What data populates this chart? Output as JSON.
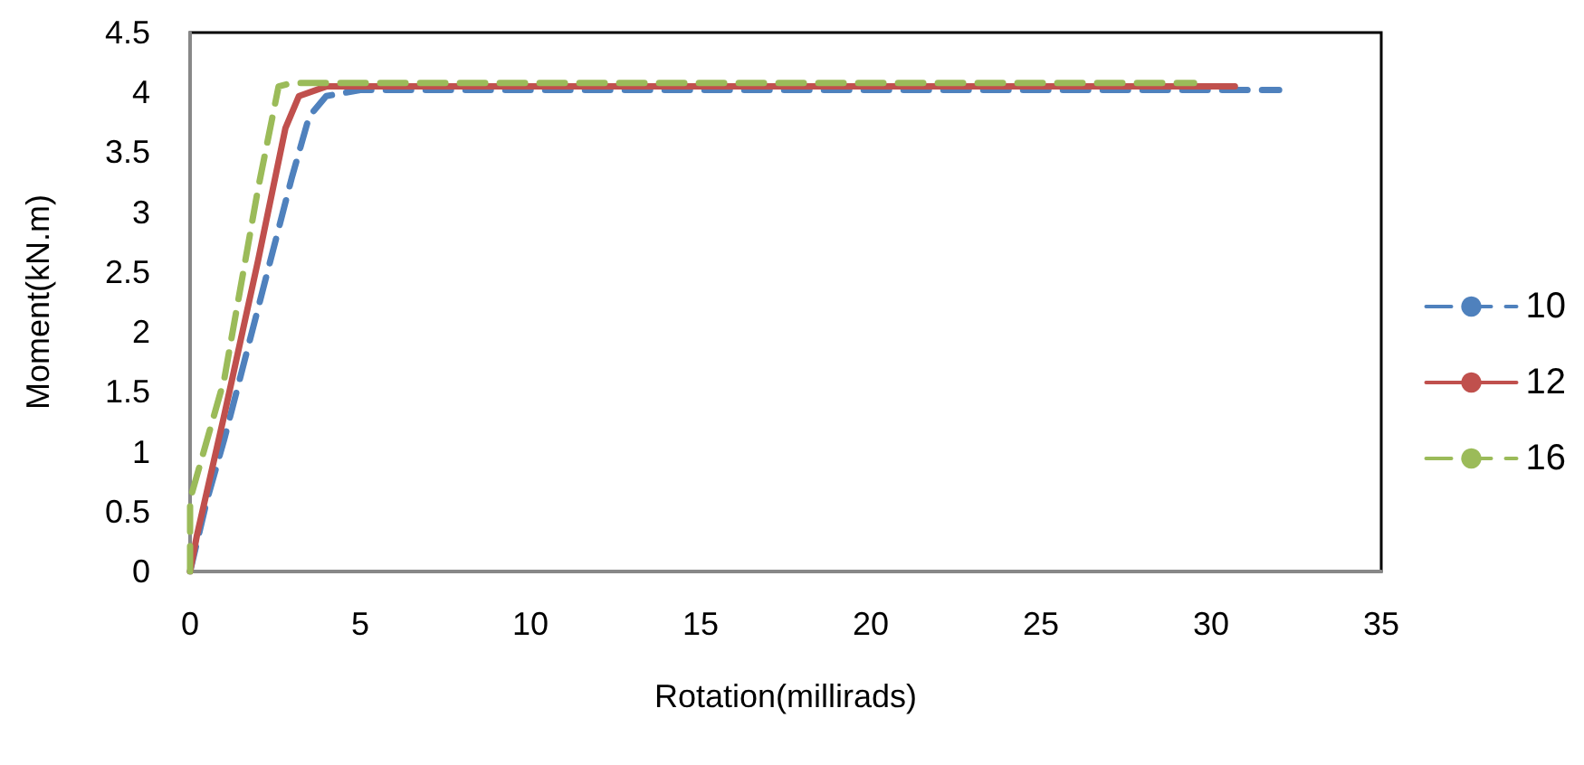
{
  "chart_data": {
    "type": "line",
    "xlabel": "Rotation(millirads)",
    "ylabel": "Moment(kN.m)",
    "xlim": [
      0,
      35
    ],
    "xticks": [
      0,
      5,
      10,
      15,
      20,
      25,
      30,
      35
    ],
    "ylim": [
      0,
      4.5
    ],
    "yticks": [
      0,
      0.5,
      1,
      1.5,
      2,
      2.5,
      3,
      3.5,
      4,
      4.5
    ],
    "grid": false,
    "legend": "right",
    "marker": "none",
    "series": [
      {
        "name": "10",
        "color": "#4f81bd",
        "line_style": "dashed",
        "x": [
          0,
          0.5,
          1,
          2,
          3,
          3.5,
          4,
          5,
          32
        ],
        "values": [
          0,
          0.6,
          1.1,
          2.2,
          3.3,
          3.8,
          3.97,
          4.02,
          4.02
        ]
      },
      {
        "name": "12",
        "color": "#c0504d",
        "line_style": "solid",
        "x": [
          0,
          0.2,
          1,
          2,
          2.8,
          3.2,
          4,
          30.7
        ],
        "values": [
          0,
          0.3,
          1.3,
          2.6,
          3.7,
          3.97,
          4.05,
          4.05
        ]
      },
      {
        "name": "16",
        "color": "#9bbb59",
        "line_style": "dashed",
        "x": [
          0,
          0,
          1,
          2,
          2.6,
          3,
          29.5
        ],
        "values": [
          0,
          0.6,
          1.6,
          3.2,
          4.05,
          4.08,
          4.08
        ]
      }
    ]
  }
}
